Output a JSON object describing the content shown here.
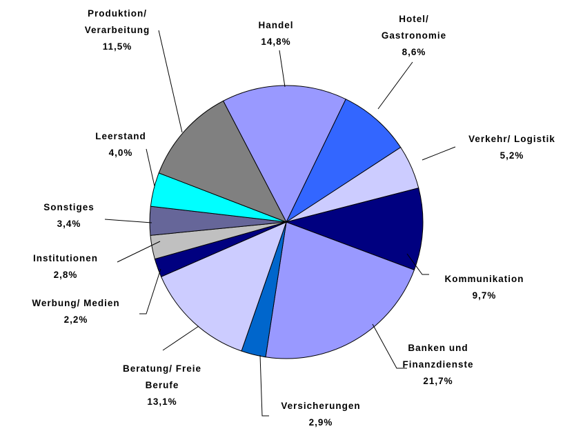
{
  "chart_data": {
    "type": "pie",
    "categories": [
      "Handel",
      "Hotel/\nGastronomie",
      "Verkehr/ Logistik",
      "Kommunikation",
      "Banken und\nFinanzdienste",
      "Versicherungen",
      "Beratung/ Freie\nBerufe",
      "Werbung/ Medien",
      "Institutionen",
      "Sonstiges",
      "Leerstand",
      "Produktion/\nVerarbeitung"
    ],
    "values": [
      14.8,
      8.6,
      5.2,
      9.7,
      21.7,
      2.9,
      13.1,
      2.2,
      2.8,
      3.4,
      4.0,
      11.5
    ],
    "value_labels": [
      "14,8%",
      "8,6%",
      "5,2%",
      "9,7%",
      "21,7%",
      "2,9%",
      "13,1%",
      "2,2%",
      "2,8%",
      "3,4%",
      "4,0%",
      "11,5%"
    ],
    "colors": [
      "#9999ff",
      "#3366ff",
      "#ccccff",
      "#000080",
      "#9999ff",
      "#0066cc",
      "#ccccff",
      "#000080",
      "#c0c0c0",
      "#666699",
      "#00ffff",
      "#808080"
    ]
  }
}
